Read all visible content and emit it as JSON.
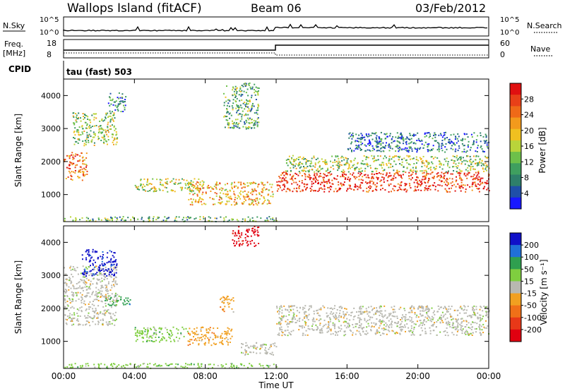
{
  "header": {
    "station": "Wallops Island (fitACF)",
    "beam": "Beam 06",
    "date": "03/Feb/2012"
  },
  "param_panels": {
    "nsky_label": "N.Sky",
    "nsearch_label": "N.Search",
    "noise_tick_hi": "10^5",
    "noise_tick_lo": "10^0",
    "freq_label_1": "Freq.",
    "freq_label_2": "[MHz]",
    "freq_tick_hi": "18",
    "freq_tick_lo": "8",
    "nave_label": "Nave",
    "nave_tick_hi": "60",
    "nave_tick_lo": "0",
    "cpid_label": "CPID",
    "cpid_value": "tau (fast) 503"
  },
  "chart_data": [
    {
      "type": "heatmap",
      "name": "power",
      "ylabel": "Slant Range [km]",
      "xlabel": "Time UT",
      "x_ticks": [
        "00:00",
        "04:00",
        "08:00",
        "12:00",
        "16:00",
        "20:00",
        "00:00"
      ],
      "y_ticks": [
        "1000",
        "2000",
        "3000",
        "4000"
      ],
      "xlim_hours": [
        0,
        24
      ],
      "ylim_km": [
        180,
        4500
      ],
      "colorbar_label": "Power [dB]",
      "colorbar_ticks": [
        "4",
        "8",
        "12",
        "16",
        "20",
        "24",
        "28"
      ],
      "colorbar_colors": [
        "#1818ff",
        "#1f4fa8",
        "#2e7f6a",
        "#3f9f5f",
        "#6dc04a",
        "#b9d43a",
        "#f0c020",
        "#f39a1c",
        "#ef6a18",
        "#e84018",
        "#e01010"
      ],
      "echo_regions": [
        {
          "t": [
            0.0,
            1.3
          ],
          "r": [
            1450,
            2300
          ],
          "level": 0.75
        },
        {
          "t": [
            0.5,
            3.0
          ],
          "r": [
            2500,
            3500
          ],
          "level": 0.45
        },
        {
          "t": [
            2.5,
            3.5
          ],
          "r": [
            3500,
            4100
          ],
          "level": 0.25
        },
        {
          "t": [
            4.0,
            7.8
          ],
          "r": [
            1100,
            1500
          ],
          "level": 0.5
        },
        {
          "t": [
            7.0,
            11.8
          ],
          "r": [
            700,
            1400
          ],
          "level": 0.65
        },
        {
          "t": [
            9.0,
            11.0
          ],
          "r": [
            3000,
            4400
          ],
          "level": 0.35
        },
        {
          "t": [
            12.0,
            24.0
          ],
          "r": [
            1100,
            1700
          ],
          "level": 0.9
        },
        {
          "t": [
            12.5,
            24.0
          ],
          "r": [
            1700,
            2200
          ],
          "level": 0.45
        },
        {
          "t": [
            16.0,
            24.0
          ],
          "r": [
            2300,
            2900
          ],
          "level": 0.2
        },
        {
          "t": [
            0.0,
            12.0
          ],
          "r": [
            200,
            350
          ],
          "level": 0.35
        }
      ]
    },
    {
      "type": "heatmap",
      "name": "velocity",
      "ylabel": "Slant Range [km]",
      "xlabel": "Time UT",
      "x_ticks": [
        "00:00",
        "04:00",
        "08:00",
        "12:00",
        "16:00",
        "20:00",
        "00:00"
      ],
      "y_ticks": [
        "1000",
        "2000",
        "3000",
        "4000"
      ],
      "xlim_hours": [
        0,
        24
      ],
      "ylim_km": [
        180,
        4500
      ],
      "colorbar_label": "Velocity [m s⁻¹]",
      "colorbar_ticks": [
        "200",
        "100",
        "50",
        "15",
        "-15",
        "-50",
        "-100",
        "-200"
      ],
      "colorbar_colors": [
        "#1010c8",
        "#2070d8",
        "#2f9f4f",
        "#7fce3f",
        "#b8b8b0",
        "#f1a020",
        "#f07018",
        "#e83818",
        "#e00010"
      ],
      "echo_regions": [
        {
          "t": [
            0.0,
            3.0
          ],
          "r": [
            1500,
            3300
          ],
          "vel": "gray"
        },
        {
          "t": [
            1.0,
            3.0
          ],
          "r": [
            3000,
            3800
          ],
          "vel": "blue"
        },
        {
          "t": [
            2.3,
            3.8
          ],
          "r": [
            2100,
            2400
          ],
          "vel": "darkgreen"
        },
        {
          "t": [
            4.0,
            7.0
          ],
          "r": [
            1000,
            1450
          ],
          "vel": "green"
        },
        {
          "t": [
            7.0,
            9.5
          ],
          "r": [
            900,
            1450
          ],
          "vel": "orange"
        },
        {
          "t": [
            8.8,
            9.6
          ],
          "r": [
            1900,
            2400
          ],
          "vel": "orange"
        },
        {
          "t": [
            9.5,
            11.0
          ],
          "r": [
            3900,
            4500
          ],
          "vel": "red"
        },
        {
          "t": [
            10.0,
            12.0
          ],
          "r": [
            600,
            1000
          ],
          "vel": "gray"
        },
        {
          "t": [
            12.0,
            24.0
          ],
          "r": [
            1200,
            2100
          ],
          "vel": "gray"
        },
        {
          "t": [
            0.0,
            12.0
          ],
          "r": [
            200,
            350
          ],
          "vel": "green"
        }
      ]
    }
  ]
}
